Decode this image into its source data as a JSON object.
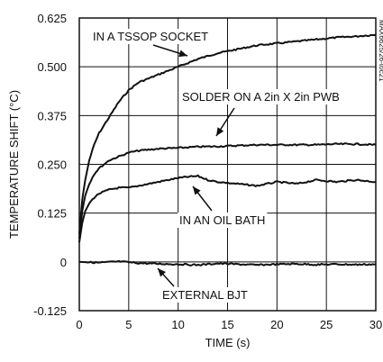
{
  "chart_data": {
    "type": "line",
    "xlabel": "TIME (s)",
    "ylabel": "TEMPERATURE SHIFT (°C)",
    "xlim": [
      0,
      30
    ],
    "ylim": [
      -0.125,
      0.625
    ],
    "x_ticks": [
      "0",
      "5",
      "10",
      "15",
      "20",
      "25",
      "30"
    ],
    "y_ticks": [
      "0.625",
      "0.500",
      "0.375",
      "0.250",
      "0.125",
      "0",
      "-0.125"
    ],
    "grid": true,
    "legend": "none",
    "line_color": "#111111",
    "series": [
      {
        "name": "IN A TSSOP SOCKET",
        "x": [
          0,
          0.3,
          0.6,
          1,
          1.5,
          2,
          3,
          4,
          5,
          6,
          7,
          8,
          9,
          10,
          12,
          14,
          16,
          18,
          20,
          22,
          24,
          26,
          28,
          30
        ],
        "y": [
          0.07,
          0.16,
          0.21,
          0.26,
          0.3,
          0.33,
          0.37,
          0.41,
          0.44,
          0.46,
          0.47,
          0.48,
          0.49,
          0.5,
          0.52,
          0.535,
          0.545,
          0.555,
          0.56,
          0.565,
          0.57,
          0.575,
          0.578,
          0.582
        ]
      },
      {
        "name": "SOLDER ON A 2in X 2in PWB",
        "x": [
          0,
          0.3,
          0.6,
          1,
          1.5,
          2,
          3,
          4,
          5,
          6,
          8,
          10,
          12,
          14,
          16,
          18,
          20,
          22,
          24,
          26,
          28,
          30
        ],
        "y": [
          0.06,
          0.13,
          0.17,
          0.2,
          0.225,
          0.24,
          0.26,
          0.27,
          0.28,
          0.285,
          0.29,
          0.292,
          0.295,
          0.296,
          0.298,
          0.3,
          0.3,
          0.3,
          0.3,
          0.302,
          0.302,
          0.3
        ]
      },
      {
        "name": "IN AN OIL BATH",
        "x": [
          0,
          0.3,
          0.6,
          1,
          1.5,
          2,
          3,
          4,
          5,
          6,
          7,
          8,
          9,
          10,
          11,
          12,
          13,
          14,
          16,
          18,
          20,
          22,
          24,
          26,
          28,
          30
        ],
        "y": [
          0.05,
          0.1,
          0.13,
          0.15,
          0.165,
          0.175,
          0.185,
          0.19,
          0.19,
          0.195,
          0.2,
          0.205,
          0.21,
          0.215,
          0.218,
          0.22,
          0.21,
          0.205,
          0.2,
          0.195,
          0.205,
          0.2,
          0.21,
          0.205,
          0.21,
          0.205
        ]
      },
      {
        "name": "EXTERNAL BJT",
        "x": [
          0,
          2,
          4,
          6,
          8,
          10,
          12,
          14,
          16,
          18,
          20,
          22,
          24,
          26,
          28,
          30
        ],
        "y": [
          0.0,
          -0.002,
          0.001,
          -0.003,
          -0.005,
          -0.006,
          -0.008,
          -0.004,
          -0.006,
          -0.008,
          -0.006,
          -0.005,
          -0.007,
          -0.006,
          -0.007,
          -0.006
        ]
      }
    ],
    "annotations": [
      {
        "text": "IN A TSSOP SOCKET",
        "series": 0
      },
      {
        "text": "SOLDER ON A 2in X 2in PWB",
        "series": 1
      },
      {
        "text": "IN AN OIL BATH",
        "series": 2
      },
      {
        "text": "EXTERNAL BJT",
        "series": 3
      }
    ],
    "figure_id": "MAX6625/26-toc21"
  }
}
